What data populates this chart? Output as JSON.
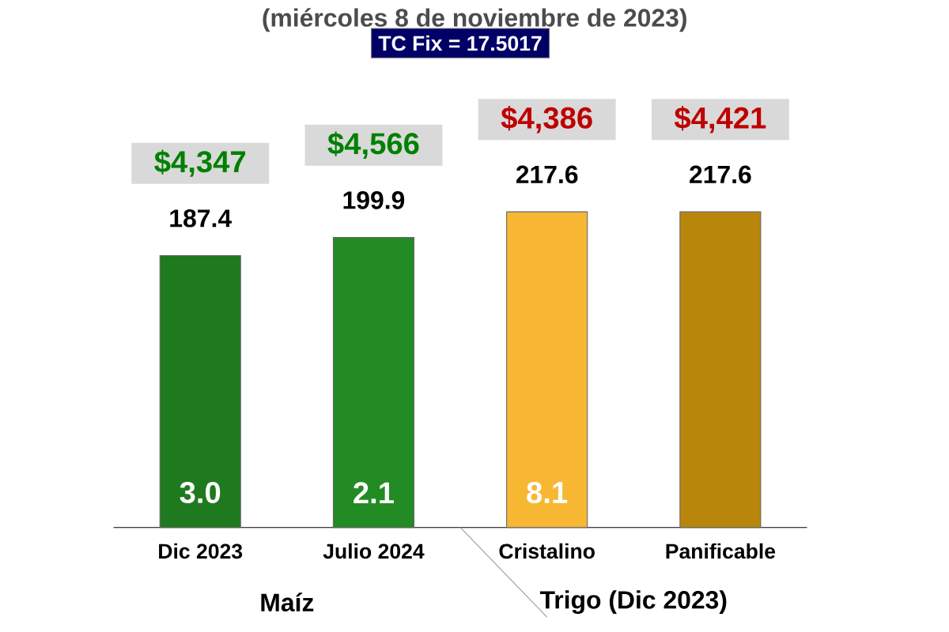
{
  "chart_data": {
    "type": "bar",
    "subtitle": "(miércoles 8 de noviembre de 2023)",
    "categories": [
      "Dic 2023",
      "Julio 2024",
      "Cristalino",
      "Panificable"
    ],
    "values": [
      187.4,
      199.9,
      217.6,
      217.6
    ],
    "colors": [
      "#1f7a1f",
      "#238b23",
      "#f7b733",
      "#b8860b"
    ],
    "data_labels": true,
    "annotations": [
      "TC Fix = 17.5017",
      "Maíz",
      "Trigo (Dic 2023)",
      "$4,347",
      "$4,566",
      "$4,386",
      "$4,421",
      "3.0",
      "2.1",
      "8.1"
    ]
  }
}
